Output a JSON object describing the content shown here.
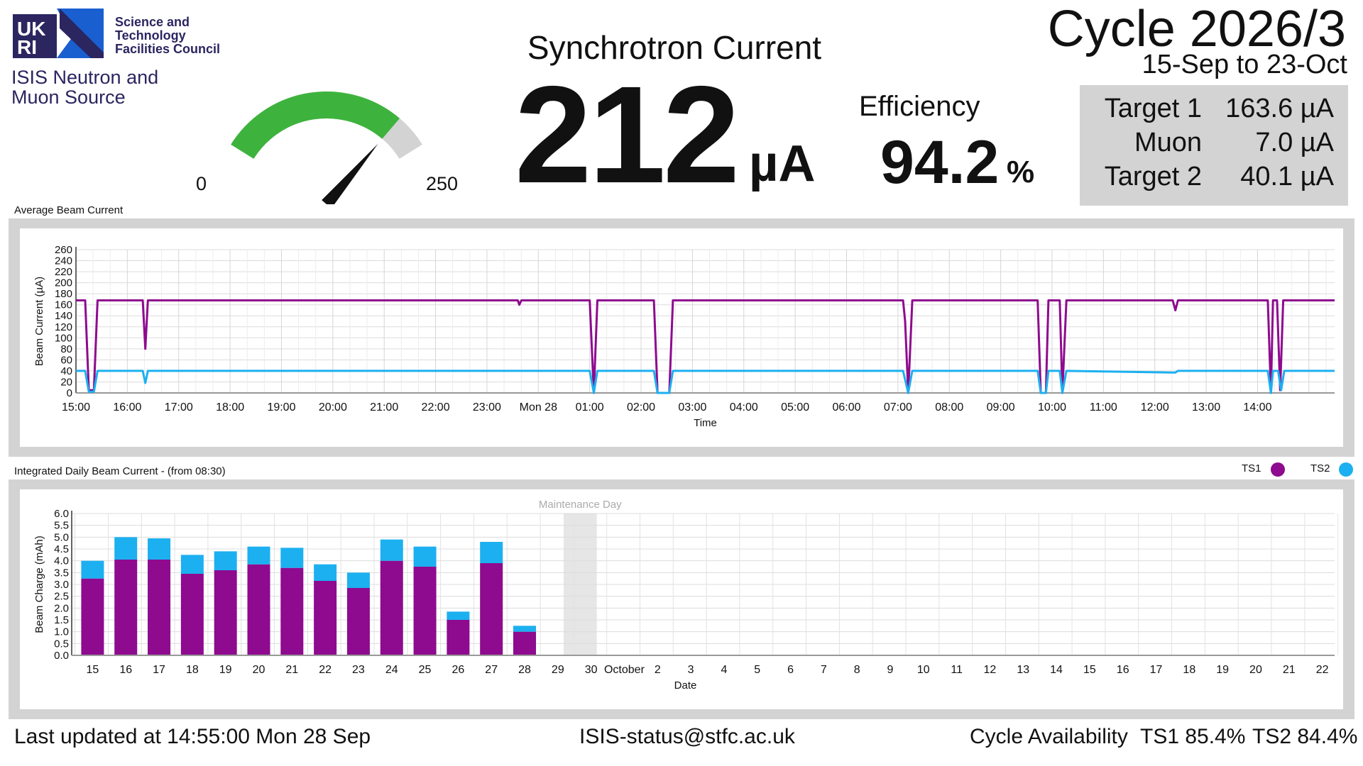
{
  "branding": {
    "org_logo_text": [
      "UK",
      "RI"
    ],
    "org_lines": [
      "Science and",
      "Technology",
      "Facilities Council"
    ],
    "facility_lines": [
      "ISIS Neutron and",
      "Muon Source"
    ]
  },
  "gauge": {
    "min_label": "0",
    "max_label": "250",
    "value": 212,
    "max": 250,
    "fill_color": "#3db33d",
    "track_color": "#d3d3d3"
  },
  "synchrotron": {
    "title": "Synchrotron Current",
    "value": "212",
    "unit": "µA"
  },
  "efficiency": {
    "label": "Efficiency",
    "value": "94.2",
    "unit": "%"
  },
  "cycle": {
    "title": "Cycle 2026/3",
    "dates": "15-Sep to 23-Oct"
  },
  "targets": [
    {
      "name": "Target 1",
      "value": "163.6 µA"
    },
    {
      "name": "Muon",
      "value": "7.0 µA"
    },
    {
      "name": "Target 2",
      "value": "40.1 µA"
    }
  ],
  "beam_panel": {
    "title": "Average Beam Current"
  },
  "daily_panel": {
    "title": "Integrated Daily Beam Current - (from 08:30)"
  },
  "legend": [
    {
      "name": "TS1",
      "color": "#8e0a8e"
    },
    {
      "name": "TS2",
      "color": "#1cb0f0"
    }
  ],
  "chart_data": [
    {
      "type": "line",
      "title": "Average Beam Current",
      "xlabel": "Time",
      "ylabel": "Beam Current (µA)",
      "ylim": [
        0,
        260
      ],
      "yticks": [
        0,
        20,
        40,
        60,
        80,
        100,
        120,
        140,
        160,
        180,
        200,
        220,
        240,
        260
      ],
      "xlim": [
        0,
        24.5
      ],
      "x_tick_labels": [
        "15:00",
        "16:00",
        "17:00",
        "18:00",
        "19:00",
        "20:00",
        "21:00",
        "22:00",
        "23:00",
        "Mon 28",
        "01:00",
        "02:00",
        "03:00",
        "04:00",
        "05:00",
        "06:00",
        "07:00",
        "08:00",
        "09:00",
        "10:00",
        "11:00",
        "12:00",
        "13:00",
        "14:00"
      ],
      "x_unit": "hours since 15:00 Sun 27 Sep",
      "grid": true,
      "series": [
        {
          "name": "TS1",
          "color": "#8e0a8e",
          "points": [
            [
              0,
              168
            ],
            [
              0.18,
              168
            ],
            [
              0.25,
              5
            ],
            [
              0.35,
              5
            ],
            [
              0.42,
              168
            ],
            [
              1.3,
              168
            ],
            [
              1.35,
              80
            ],
            [
              1.4,
              168
            ],
            [
              8.6,
              168
            ],
            [
              8.63,
              160
            ],
            [
              8.67,
              168
            ],
            [
              10.0,
              168
            ],
            [
              10.08,
              0
            ],
            [
              10.15,
              168
            ],
            [
              11.25,
              168
            ],
            [
              11.32,
              0
            ],
            [
              11.55,
              0
            ],
            [
              11.62,
              168
            ],
            [
              16.1,
              168
            ],
            [
              16.14,
              130
            ],
            [
              16.2,
              0
            ],
            [
              16.28,
              168
            ],
            [
              18.72,
              168
            ],
            [
              18.78,
              0
            ],
            [
              18.88,
              0
            ],
            [
              18.93,
              168
            ],
            [
              19.15,
              168
            ],
            [
              19.2,
              0
            ],
            [
              19.28,
              168
            ],
            [
              21.35,
              168
            ],
            [
              21.4,
              150
            ],
            [
              21.45,
              168
            ],
            [
              23.2,
              168
            ],
            [
              23.26,
              0
            ],
            [
              23.3,
              168
            ],
            [
              23.38,
              168
            ],
            [
              23.44,
              5
            ],
            [
              23.5,
              168
            ],
            [
              24.5,
              168
            ]
          ]
        },
        {
          "name": "TS2",
          "color": "#1cb0f0",
          "points": [
            [
              0,
              40
            ],
            [
              0.18,
              40
            ],
            [
              0.25,
              2
            ],
            [
              0.35,
              2
            ],
            [
              0.42,
              40
            ],
            [
              1.3,
              40
            ],
            [
              1.35,
              18
            ],
            [
              1.4,
              40
            ],
            [
              10.0,
              40
            ],
            [
              10.08,
              0
            ],
            [
              10.15,
              40
            ],
            [
              11.25,
              40
            ],
            [
              11.32,
              0
            ],
            [
              11.55,
              0
            ],
            [
              11.62,
              40
            ],
            [
              16.1,
              40
            ],
            [
              16.2,
              0
            ],
            [
              16.28,
              40
            ],
            [
              18.72,
              40
            ],
            [
              18.78,
              0
            ],
            [
              18.88,
              0
            ],
            [
              18.93,
              40
            ],
            [
              19.15,
              40
            ],
            [
              19.2,
              0
            ],
            [
              19.28,
              40
            ],
            [
              21.4,
              37
            ],
            [
              21.45,
              40
            ],
            [
              23.2,
              40
            ],
            [
              23.26,
              0
            ],
            [
              23.3,
              40
            ],
            [
              23.4,
              40
            ],
            [
              23.46,
              5
            ],
            [
              23.52,
              40
            ],
            [
              24.5,
              40
            ]
          ]
        }
      ]
    },
    {
      "type": "bar",
      "stacked": true,
      "title": "Integrated Daily Beam Current - (from 08:30)",
      "xlabel": "Date",
      "ylabel": "Beam Charge (mAh)",
      "ylim": [
        0,
        6.0
      ],
      "yticks": [
        "0.0",
        "0.5",
        "1.0",
        "1.5",
        "2.0",
        "2.5",
        "3.0",
        "3.5",
        "4.0",
        "4.5",
        "5.0",
        "5.5",
        "6.0"
      ],
      "categories": [
        "15",
        "16",
        "17",
        "18",
        "19",
        "20",
        "21",
        "22",
        "23",
        "24",
        "25",
        "26",
        "27",
        "28",
        "29",
        "30",
        "October",
        "2",
        "3",
        "4",
        "5",
        "6",
        "7",
        "8",
        "9",
        "10",
        "11",
        "12",
        "13",
        "14",
        "15",
        "16",
        "17",
        "18",
        "19",
        "20",
        "21",
        "22"
      ],
      "maintenance": {
        "label": "Maintenance Day",
        "category_index": 15
      },
      "grid": true,
      "series": [
        {
          "name": "TS1",
          "color": "#8e0a8e",
          "values": [
            3.25,
            4.05,
            4.05,
            3.45,
            3.6,
            3.85,
            3.7,
            3.15,
            2.85,
            4.0,
            3.75,
            1.5,
            3.9,
            1.0,
            0,
            0,
            0,
            0,
            0,
            0,
            0,
            0,
            0,
            0,
            0,
            0,
            0,
            0,
            0,
            0,
            0,
            0,
            0,
            0,
            0,
            0,
            0,
            0
          ]
        },
        {
          "name": "TS2",
          "color": "#1cb0f0",
          "values": [
            0.75,
            0.95,
            0.9,
            0.8,
            0.8,
            0.75,
            0.85,
            0.7,
            0.65,
            0.9,
            0.85,
            0.35,
            0.9,
            0.25,
            0,
            0,
            0,
            0,
            0,
            0,
            0,
            0,
            0,
            0,
            0,
            0,
            0,
            0,
            0,
            0,
            0,
            0,
            0,
            0,
            0,
            0,
            0,
            0
          ]
        }
      ]
    }
  ],
  "footer": {
    "updated": "Last updated at 14:55:00 Mon 28 Sep",
    "email": "ISIS-status@stfc.ac.uk",
    "availability_label": "Cycle Availability",
    "ts1": "TS1 85.4%",
    "ts2": "TS2 84.4%"
  }
}
